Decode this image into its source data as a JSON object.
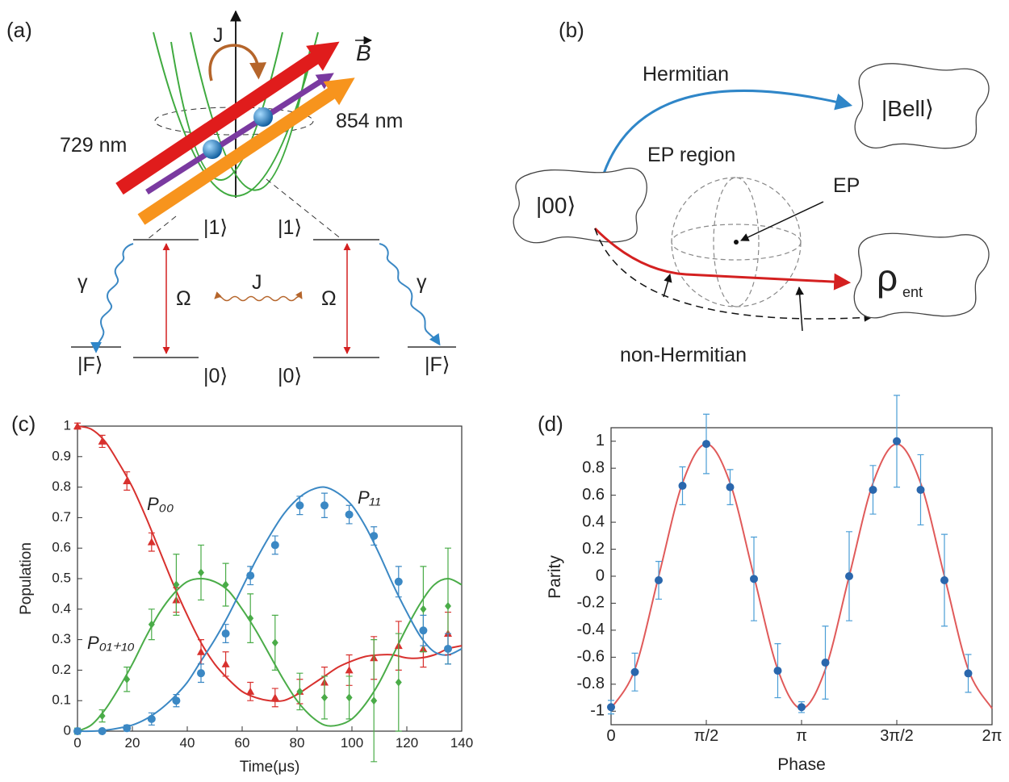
{
  "panel_a": {
    "label": "(a)",
    "coupling_top": "J",
    "field": "B",
    "wavelength_729": "729 nm",
    "wavelength_854": "854 nm",
    "level_1_left": "|1⟩",
    "level_1_right": "|1⟩",
    "decay_left": "γ",
    "decay_right": "γ",
    "rabi_left": "Ω",
    "coupling": "J",
    "rabi_right": "Ω",
    "level_f_left": "|F⟩",
    "level_0_left": "|0⟩",
    "level_0_right": "|0⟩",
    "level_f_right": "|F⟩"
  },
  "panel_b": {
    "label": "(b)",
    "hermitian": "Hermitian",
    "bell_state": "|Bell⟩",
    "ep_region": "EP region",
    "ep": "EP",
    "initial_state": "|00⟩",
    "final_state": "ρ",
    "final_state_subscript": "ent",
    "non_hermitian": "non-Hermitian"
  },
  "chart_data": [
    {
      "type": "scatter",
      "panel_label": "(c)",
      "xlabel": "Time(μs)",
      "ylabel": "Population",
      "xlim": [
        0,
        140
      ],
      "ylim": [
        0,
        1
      ],
      "xticks": [
        0,
        20,
        40,
        60,
        80,
        100,
        120,
        140
      ],
      "yticks": [
        0,
        0.1,
        0.2,
        0.3,
        0.4,
        0.5,
        0.6,
        0.7,
        0.8,
        0.9,
        1
      ],
      "x": [
        0,
        9,
        18,
        27,
        36,
        45,
        54,
        63,
        72,
        81,
        90,
        99,
        108,
        117,
        126,
        135
      ],
      "fit_x": [
        0,
        5,
        10,
        15,
        20,
        25,
        30,
        35,
        40,
        45,
        50,
        55,
        60,
        65,
        70,
        75,
        80,
        85,
        90,
        95,
        100,
        105,
        110,
        115,
        120,
        125,
        130,
        135,
        140
      ],
      "series": [
        {
          "name": "P₀₀",
          "color": "#d8312e",
          "marker": "triangle",
          "values": [
            1.0,
            0.95,
            0.82,
            0.62,
            0.43,
            0.26,
            0.22,
            0.13,
            0.11,
            0.13,
            0.16,
            0.2,
            0.24,
            0.28,
            0.27,
            0.32
          ],
          "errors": [
            0.01,
            0.02,
            0.03,
            0.03,
            0.04,
            0.04,
            0.04,
            0.03,
            0.03,
            0.04,
            0.05,
            0.05,
            0.07,
            0.08,
            0.06,
            0.07
          ],
          "fit_values": [
            1.0,
            0.99,
            0.95,
            0.88,
            0.8,
            0.7,
            0.59,
            0.48,
            0.38,
            0.29,
            0.22,
            0.17,
            0.13,
            0.11,
            0.1,
            0.1,
            0.12,
            0.15,
            0.18,
            0.21,
            0.23,
            0.245,
            0.25,
            0.25,
            0.24,
            0.24,
            0.25,
            0.27,
            0.28
          ]
        },
        {
          "name": "P₀₁₊₁₀",
          "color": "#4aac48",
          "marker": "diamond",
          "values": [
            0,
            0.05,
            0.17,
            0.35,
            0.48,
            0.52,
            0.48,
            0.37,
            0.29,
            0.13,
            0.11,
            0.11,
            0.1,
            0.16,
            0.4,
            0.41
          ],
          "errors": [
            0.01,
            0.02,
            0.04,
            0.05,
            0.1,
            0.09,
            0.07,
            0.08,
            0.09,
            0.06,
            0.07,
            0.07,
            0.2,
            0.16,
            0.14,
            0.19
          ],
          "fit_values": [
            0,
            0.02,
            0.07,
            0.14,
            0.22,
            0.31,
            0.39,
            0.45,
            0.49,
            0.5,
            0.49,
            0.46,
            0.4,
            0.33,
            0.25,
            0.17,
            0.1,
            0.05,
            0.02,
            0.02,
            0.04,
            0.09,
            0.16,
            0.25,
            0.34,
            0.42,
            0.48,
            0.5,
            0.48
          ]
        },
        {
          "name": "P₁₁",
          "color": "#3b88c4",
          "marker": "circle",
          "values": [
            0,
            0,
            0.01,
            0.04,
            0.1,
            0.19,
            0.32,
            0.51,
            0.61,
            0.74,
            0.74,
            0.71,
            0.64,
            0.49,
            0.33,
            0.27
          ],
          "errors": [
            0.005,
            0.005,
            0.01,
            0.02,
            0.02,
            0.03,
            0.03,
            0.03,
            0.03,
            0.03,
            0.04,
            0.03,
            0.03,
            0.05,
            0.05,
            0.05
          ],
          "fit_values": [
            0,
            0,
            0.003,
            0.01,
            0.02,
            0.04,
            0.07,
            0.11,
            0.16,
            0.23,
            0.3,
            0.38,
            0.47,
            0.56,
            0.64,
            0.71,
            0.76,
            0.79,
            0.8,
            0.78,
            0.74,
            0.67,
            0.58,
            0.48,
            0.39,
            0.31,
            0.26,
            0.25,
            0.27
          ]
        }
      ]
    },
    {
      "type": "scatter",
      "panel_label": "(d)",
      "xlabel": "Phase",
      "ylabel": "Parity",
      "xlim": [
        0,
        6.2832
      ],
      "ylim": [
        -1.1,
        1.1
      ],
      "xticks": [
        0,
        {
          "value": 1.5708,
          "label": "π/2"
        },
        {
          "value": 3.1416,
          "label": "π"
        },
        {
          "value": 4.7124,
          "label": "3π/2"
        },
        {
          "value": 6.2832,
          "label": "2π"
        }
      ],
      "yticks": [
        -1,
        -0.8,
        -0.6,
        -0.4,
        -0.2,
        0,
        0.2,
        0.4,
        0.6,
        0.8,
        1
      ],
      "x": [
        0,
        0.3927,
        0.7854,
        1.1781,
        1.5708,
        1.9635,
        2.3562,
        2.7489,
        3.1416,
        3.5343,
        3.927,
        4.3197,
        4.7124,
        5.1051,
        5.4978,
        5.8905
      ],
      "values": [
        -0.97,
        -0.71,
        -0.03,
        0.67,
        0.98,
        0.66,
        -0.02,
        -0.7,
        -0.97,
        -0.64,
        0.0,
        0.64,
        1.0,
        0.64,
        -0.03,
        -0.72
      ],
      "errors": [
        0.05,
        0.14,
        0.14,
        0.14,
        0.22,
        0.13,
        0.31,
        0.2,
        0.04,
        0.27,
        0.33,
        0.18,
        0.34,
        0.26,
        0.34,
        0.14
      ],
      "color": "#2a67ad",
      "marker": "circle",
      "error_color": "#4b9ed6",
      "fit_x": [
        0,
        0.3927,
        0.7854,
        1.1781,
        1.5708,
        1.9635,
        2.3562,
        2.7489,
        3.1416,
        3.5343,
        3.927,
        4.3197,
        4.7124,
        5.1051,
        5.4978,
        5.8905,
        6.2832
      ],
      "fit_values": [
        -0.98,
        -0.69,
        0,
        0.69,
        0.98,
        0.69,
        0,
        -0.69,
        -0.98,
        -0.69,
        0,
        0.69,
        0.98,
        0.69,
        0,
        -0.69,
        -0.98
      ],
      "fit_color": "#e05a5a"
    }
  ]
}
